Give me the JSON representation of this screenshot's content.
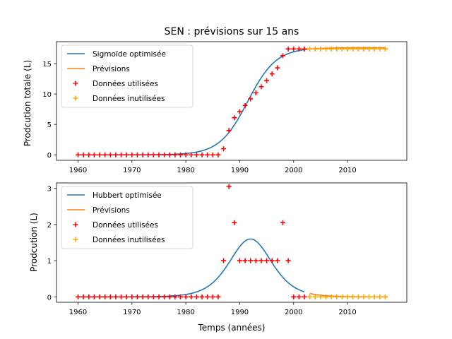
{
  "colors": {
    "fit": "#1f77b4",
    "forecast": "#ff7f0e",
    "used": "#ff0000",
    "unused": "#ffa500"
  },
  "chart_data": [
    {
      "type": "line",
      "title": "SEN : prévisions sur 15 ans",
      "xlabel": "",
      "ylabel": "Prodcution totale (L)",
      "xlim": [
        1956,
        2021
      ],
      "ylim": [
        -0.9,
        18.6
      ],
      "xticks": [
        1960,
        1970,
        1980,
        1990,
        2000,
        2010
      ],
      "yticks": [
        0,
        5,
        10,
        15
      ],
      "legend_position": "top-left",
      "legend": [
        "Sigmoïde optimisée",
        "Prévisions",
        "Données utilisées",
        "Données inutilisées"
      ],
      "series": [
        {
          "name": "Sigmoïde optimisée",
          "kind": "line",
          "color": "#1f77b4",
          "model": "sigmoid",
          "params": {
            "K": 17.6,
            "x0": 1991.5,
            "k": 0.38
          },
          "x_range": [
            1960,
            2002
          ]
        },
        {
          "name": "Prévisions",
          "kind": "line",
          "color": "#ff7f0e",
          "model": "sigmoid",
          "params": {
            "K": 17.6,
            "x0": 1991.5,
            "k": 0.38
          },
          "x_range": [
            2002,
            2017
          ]
        },
        {
          "name": "Données utilisées",
          "kind": "scatter",
          "color": "#ff0000",
          "x": [
            1960,
            1961,
            1962,
            1963,
            1964,
            1965,
            1966,
            1967,
            1968,
            1969,
            1970,
            1971,
            1972,
            1973,
            1974,
            1975,
            1976,
            1977,
            1978,
            1979,
            1980,
            1981,
            1982,
            1983,
            1984,
            1985,
            1986,
            1987,
            1988,
            1989,
            1990,
            1991,
            1992,
            1993,
            1994,
            1995,
            1996,
            1997,
            1998,
            1999,
            2000,
            2001,
            2002
          ],
          "y": [
            0,
            0,
            0,
            0,
            0,
            0,
            0,
            0,
            0,
            0,
            0,
            0,
            0,
            0,
            0,
            0,
            0,
            0,
            0,
            0,
            0,
            0,
            0,
            0,
            0,
            0,
            0,
            1,
            4,
            6.1,
            7.1,
            8.1,
            9.2,
            10.2,
            11.2,
            12.2,
            13.3,
            14.3,
            16.3,
            17.4,
            17.4,
            17.4,
            17.4
          ]
        },
        {
          "name": "Données inutilisées",
          "kind": "scatter",
          "color": "#ffa500",
          "x": [
            2003,
            2004,
            2005,
            2006,
            2007,
            2008,
            2009,
            2010,
            2011,
            2012,
            2013,
            2014,
            2015,
            2016,
            2017
          ],
          "y": [
            17.4,
            17.4,
            17.4,
            17.4,
            17.4,
            17.4,
            17.4,
            17.4,
            17.4,
            17.4,
            17.4,
            17.4,
            17.4,
            17.4,
            17.4
          ]
        }
      ]
    },
    {
      "type": "line",
      "title": "",
      "xlabel": "Temps (années)",
      "ylabel": "Prodcution (L)",
      "xlim": [
        1956,
        2021
      ],
      "ylim": [
        -0.15,
        3.15
      ],
      "xticks": [
        1960,
        1970,
        1980,
        1990,
        2000,
        2010
      ],
      "yticks": [
        0,
        1,
        2,
        3
      ],
      "legend_position": "top-left",
      "legend": [
        "Hubbert optimisée",
        "Prévisions",
        "Données utilisées",
        "Données inutilisées"
      ],
      "series": [
        {
          "name": "Hubbert optimisée",
          "kind": "line",
          "color": "#1f77b4",
          "model": "hubbert",
          "params": {
            "A": 1.6,
            "x0": 1992,
            "k": 0.38
          },
          "x_range": [
            1960,
            2002
          ]
        },
        {
          "name": "Prévisions",
          "kind": "line",
          "color": "#ff7f0e",
          "model": "hubbert",
          "params": {
            "A": 1.6,
            "x0": 1992,
            "k": 0.38
          },
          "x_range": [
            2003,
            2017
          ]
        },
        {
          "name": "Données utilisées",
          "kind": "scatter",
          "color": "#ff0000",
          "x": [
            1960,
            1961,
            1962,
            1963,
            1964,
            1965,
            1966,
            1967,
            1968,
            1969,
            1970,
            1971,
            1972,
            1973,
            1974,
            1975,
            1976,
            1977,
            1978,
            1979,
            1980,
            1981,
            1982,
            1983,
            1984,
            1985,
            1986,
            1987,
            1988,
            1989,
            1990,
            1991,
            1992,
            1993,
            1994,
            1995,
            1996,
            1997,
            1998,
            1999,
            2000,
            2001,
            2002
          ],
          "y": [
            0,
            0,
            0,
            0,
            0,
            0,
            0,
            0,
            0,
            0,
            0,
            0,
            0,
            0,
            0,
            0,
            0,
            0,
            0,
            0,
            0,
            0,
            0,
            0,
            0,
            0,
            0,
            1,
            3.05,
            2.05,
            1,
            1,
            1,
            1,
            1,
            1,
            1,
            1,
            2.05,
            1,
            0,
            0,
            0
          ]
        },
        {
          "name": "Données inutilisées",
          "kind": "scatter",
          "color": "#ffa500",
          "x": [
            2003,
            2004,
            2005,
            2006,
            2007,
            2008,
            2009,
            2010,
            2011,
            2012,
            2013,
            2014,
            2015,
            2016,
            2017
          ],
          "y": [
            0,
            0,
            0,
            0,
            0,
            0,
            0,
            0,
            0,
            0,
            0,
            0,
            0,
            0,
            0
          ]
        }
      ]
    }
  ]
}
